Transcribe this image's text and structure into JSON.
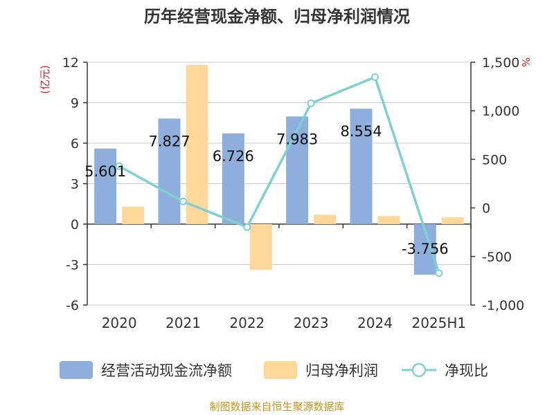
{
  "title": "历年经营现金净额、归母净利润情况",
  "source": "制图数据来自恒生聚源数据库",
  "colors": {
    "cash_flow": "#8eaedb",
    "net_profit": "#fed899",
    "ratio": "#7fd0d3",
    "unit_text": "#e02020"
  },
  "chart_data": {
    "type": "bar",
    "categories": [
      "2020",
      "2021",
      "2022",
      "2023",
      "2024",
      "2025H1"
    ],
    "series": [
      {
        "name": "经营活动现金流净额",
        "type": "bar",
        "axis": "left",
        "values": [
          5.601,
          7.827,
          6.726,
          7.983,
          8.554,
          -3.756
        ],
        "labels": [
          "5.601",
          "7.827",
          "6.726",
          "7.983",
          "8.554",
          "-3.756"
        ]
      },
      {
        "name": "归母净利润",
        "type": "bar",
        "axis": "left",
        "values": [
          1.3,
          11.8,
          -3.4,
          0.7,
          0.6,
          0.5
        ]
      },
      {
        "name": "净现比",
        "type": "line",
        "axis": "right",
        "values": [
          430,
          66,
          -198,
          1077,
          1347,
          -672
        ]
      }
    ],
    "y_left": {
      "unit": "(亿元)",
      "min": -6,
      "max": 12,
      "ticks": [
        -6,
        -3,
        0,
        3,
        6,
        9,
        12
      ],
      "tick_labels": [
        "-6",
        "-3",
        "0",
        "3",
        "6",
        "9",
        "12"
      ]
    },
    "y_right": {
      "unit": "%",
      "min": -1000,
      "max": 1500,
      "ticks": [
        -1000,
        -500,
        0,
        500,
        1000,
        1500
      ],
      "tick_labels": [
        "-1,000",
        "-500",
        "0",
        "500",
        "1,000",
        "1,500"
      ]
    },
    "grid": true,
    "legend_position": "bottom"
  }
}
